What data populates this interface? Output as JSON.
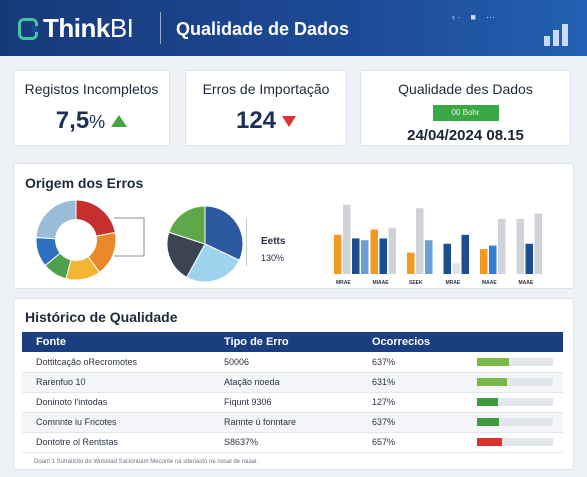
{
  "header": {
    "logo_text": "Think",
    "logo_text_bold2": "BI",
    "page_title": "Qualidade de Dados",
    "icons": [
      "chevron-icon",
      "user-icon",
      "menu-icon"
    ]
  },
  "kpis": [
    {
      "label": "Registos Incompletos",
      "value": "7,5",
      "unit": "%",
      "trend": "up",
      "trend_color": "#3fa83f"
    },
    {
      "label": "Erros de Importação",
      "value": "124",
      "unit": "",
      "trend": "down",
      "trend_color": "#d9342b"
    },
    {
      "label": "Qualidade des Dudos",
      "badge": "00 Bohr",
      "date": "24/04/2024 08.15",
      "badge_color": "#3aa845"
    }
  ],
  "origem": {
    "title": "Origem dos Erros",
    "donut": {
      "values": [
        22,
        18,
        14,
        10,
        12,
        24
      ],
      "colors": [
        "#c62f2f",
        "#e8892a",
        "#f2b632",
        "#4da04d",
        "#2f6fc0",
        "#9bbcd8"
      ]
    },
    "pie": {
      "values": [
        32,
        26,
        22,
        20
      ],
      "colors": [
        "#2c5aa0",
        "#9dd3ec",
        "#3a4452",
        "#5ea84a"
      ]
    },
    "pie_label": "Eetts",
    "pie_pct": "130%",
    "bars": {
      "categories": [
        "MRAE",
        "MIAAE",
        "SEEK",
        "MRAE",
        "MAAE",
        "MAAE"
      ],
      "groups": [
        [
          {
            "v": 44,
            "c": "#f19a1f"
          },
          {
            "v": 78,
            "c": "#cfd3d8"
          },
          {
            "v": 40,
            "c": "#1b4d8f"
          },
          {
            "v": 38,
            "c": "#6a9fd4"
          }
        ],
        [
          {
            "v": 50,
            "c": "#f19a1f"
          },
          {
            "v": 40,
            "c": "#1b4d8f"
          },
          {
            "v": 52,
            "c": "#cfd3d8"
          }
        ],
        [
          {
            "v": 24,
            "c": "#f19a1f"
          },
          {
            "v": 74,
            "c": "#cfd3d8"
          },
          {
            "v": 38,
            "c": "#6a9fd4"
          }
        ],
        [
          {
            "v": 34,
            "c": "#1b4d8f"
          },
          {
            "v": 12,
            "c": "#dfe3e8"
          },
          {
            "v": 44,
            "c": "#1b4d8f"
          }
        ],
        [
          {
            "v": 28,
            "c": "#f19a1f"
          },
          {
            "v": 32,
            "c": "#2f7fd4"
          },
          {
            "v": 62,
            "c": "#cfd3d8"
          }
        ],
        [
          {
            "v": 62,
            "c": "#cfd3d8"
          },
          {
            "v": 34,
            "c": "#1b4d8f"
          },
          {
            "v": 68,
            "c": "#cfd3d8"
          }
        ]
      ],
      "ymax": 90
    }
  },
  "historico": {
    "title": "Histórico de Qualidade",
    "columns": [
      "Fonte",
      "Tipo de Erro",
      "Ocorrecios"
    ],
    "rows": [
      {
        "fonte": "Dottitcação oRecromotes",
        "tipo": "50006",
        "ocorr": "637%",
        "level": 0.42,
        "color": "#79b84a"
      },
      {
        "fonte": "Rarenfuo 10",
        "tipo": "Atação noeda",
        "ocorr": "631%",
        "level": 0.4,
        "color": "#79b84a"
      },
      {
        "fonte": "Doninoto l'intodas",
        "tipo": "Fiqunt 9306",
        "ocorr": "127%",
        "level": 0.28,
        "color": "#3d9a3d"
      },
      {
        "fonte": "Comnnte iu Fricotes",
        "tipo": "Rannte ú fonntare",
        "ocorr": "637%",
        "level": 0.29,
        "color": "#3d9a3d"
      },
      {
        "fonte": "Dontotre ol Rentstas",
        "tipo": "S8637%",
        "ocorr": "657%",
        "level": 0.33,
        "color": "#d9342b"
      }
    ],
    "footnote": "Doam 1 Sutraticito do Wutoitad Sacionuam Meconte na siteriasto ne nosal de naaai."
  }
}
